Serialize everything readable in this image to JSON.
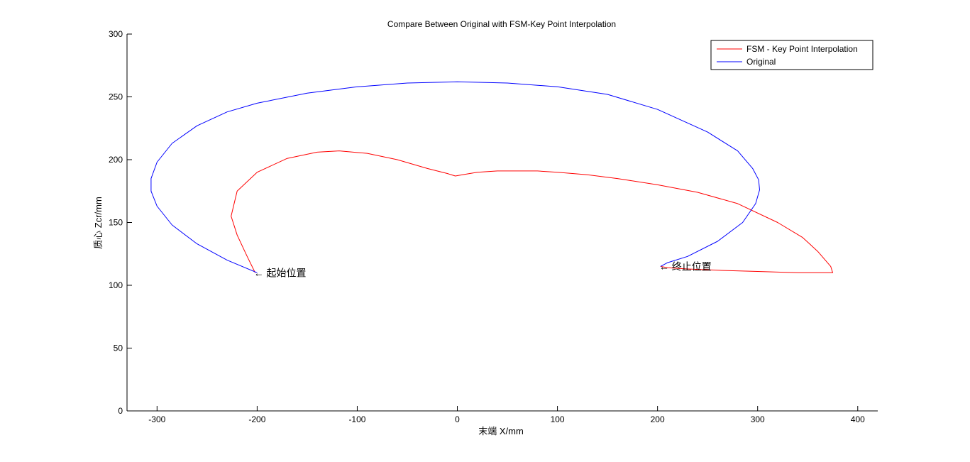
{
  "chart_data": {
    "type": "line",
    "title": "Compare Between  Original with FSM-Key Point Interpolation",
    "xlabel": "末端 X/mm",
    "ylabel": "质心 Zcr/mm",
    "xlim": [
      -330,
      420
    ],
    "ylim": [
      0,
      300
    ],
    "x_ticks": [
      -300,
      -200,
      -100,
      0,
      100,
      200,
      300,
      400
    ],
    "y_ticks": [
      0,
      50,
      100,
      150,
      200,
      250,
      300
    ],
    "grid": false,
    "legend_position": "top-right",
    "series": [
      {
        "name": "FSM - Key Point Interpolation",
        "color": "#ff0000",
        "x": [
          -202,
          -210,
          -220,
          -226,
          -220,
          -200,
          -170,
          -140,
          -118,
          -90,
          -60,
          -30,
          -10,
          -2,
          5,
          20,
          40,
          60,
          80,
          100,
          130,
          160,
          200,
          240,
          280,
          320,
          345,
          360,
          373,
          375,
          340,
          300,
          260,
          230,
          210,
          203
        ],
        "y": [
          110,
          123,
          140,
          155,
          175,
          190,
          201,
          206,
          207,
          205,
          200,
          193,
          189,
          187,
          188,
          190,
          191,
          191,
          191,
          190,
          188,
          185,
          180,
          174,
          165,
          150,
          138,
          127,
          115,
          110,
          110,
          111,
          112,
          113,
          114,
          115
        ]
      },
      {
        "name": "Original",
        "color": "#0000ff",
        "x": [
          -200,
          -230,
          -260,
          -285,
          -300,
          -306,
          -306,
          -300,
          -285,
          -260,
          -230,
          -200,
          -150,
          -100,
          -50,
          0,
          50,
          100,
          150,
          200,
          250,
          280,
          295,
          301,
          302,
          298,
          285,
          260,
          230,
          210,
          203
        ],
        "y": [
          110,
          120,
          133,
          148,
          163,
          175,
          185,
          198,
          213,
          227,
          238,
          245,
          253,
          258,
          261,
          262,
          261,
          258,
          252,
          240,
          222,
          207,
          193,
          184,
          176,
          165,
          150,
          135,
          123,
          118,
          115
        ]
      }
    ],
    "annotations": [
      {
        "text": "← 起始位置",
        "x": -202,
        "y": 110
      },
      {
        "text": "← 终止位置",
        "x": 203,
        "y": 115
      }
    ]
  }
}
